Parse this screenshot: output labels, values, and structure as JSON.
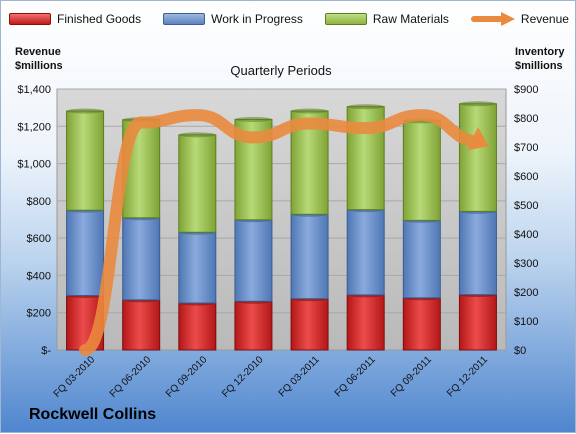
{
  "company": "Rockwell Collins",
  "chart_data": {
    "type": "bar",
    "stacked": true,
    "title": "Quarterly Periods",
    "categories": [
      "FQ 03-2010",
      "FQ 06-2010",
      "FQ 09-2010",
      "FQ 12-2010",
      "FQ 03-2011",
      "FQ 06-2011",
      "FQ 09-2011",
      "FQ 12-2011"
    ],
    "series": [
      {
        "name": "Finished Goods",
        "axis": "right",
        "color": "#d32020",
        "values": [
          188,
          173,
          162,
          168,
          177,
          190,
          180,
          191
        ]
      },
      {
        "name": "Work in Progress",
        "axis": "right",
        "color": "#6f93c9",
        "values": [
          294,
          283,
          244,
          281,
          291,
          294,
          267,
          287
        ]
      },
      {
        "name": "Raw Materials",
        "axis": "right",
        "color": "#a3c95f",
        "values": [
          342,
          338,
          336,
          346,
          356,
          355,
          343,
          371
        ]
      },
      {
        "name": "Revenue",
        "axis": "left",
        "type": "line",
        "color": "#e98a3e",
        "values": [
          0,
          1220,
          1260,
          1140,
          1215,
          1190,
          1260,
          1120
        ]
      }
    ],
    "ylabel_left": [
      "Revenue",
      "$millions"
    ],
    "ylabel_right": [
      "Inventory",
      "$millions"
    ],
    "ylim_left": [
      0,
      1400
    ],
    "ylim_right": [
      0,
      900
    ],
    "yticks_left": [
      "$-",
      "$200",
      "$400",
      "$600",
      "$800",
      "$1,000",
      "$1,200",
      "$1,400"
    ],
    "yticks_right": [
      "$0",
      "$100",
      "$200",
      "$300",
      "$400",
      "$500",
      "$600",
      "$700",
      "$800",
      "$900"
    ],
    "grid": true,
    "legend": "top"
  }
}
